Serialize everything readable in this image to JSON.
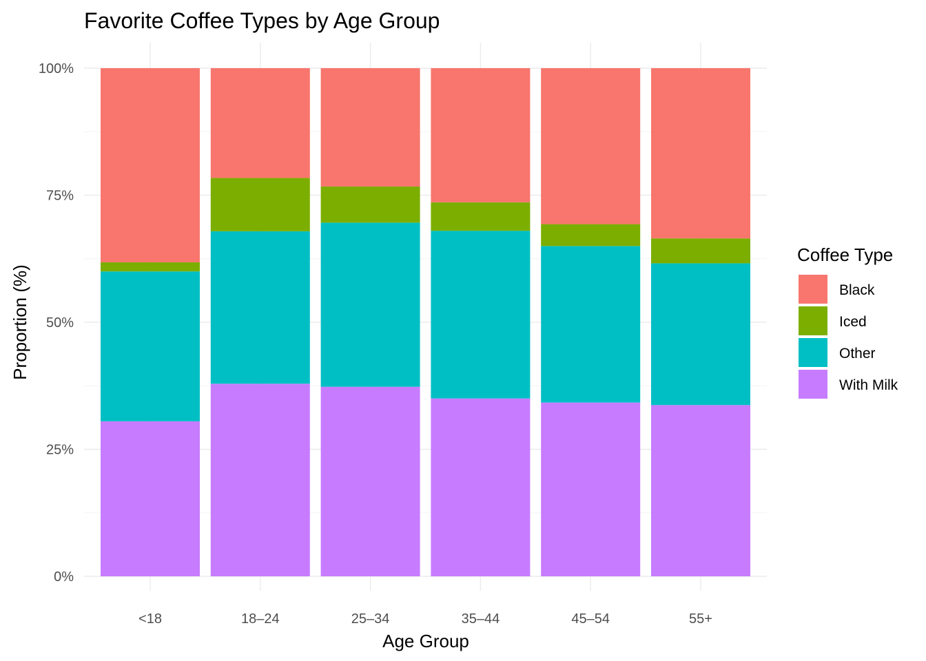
{
  "chart_data": {
    "type": "bar",
    "stacked": true,
    "title": "Favorite Coffee Types by Age Group",
    "xlabel": "Age Group",
    "ylabel": "Proportion (%)",
    "ylim": [
      0,
      100
    ],
    "y_ticks": [
      0,
      25,
      50,
      75,
      100
    ],
    "y_tick_labels": [
      "0%",
      "25%",
      "50%",
      "75%",
      "100%"
    ],
    "categories": [
      "<18",
      "18–24",
      "25–34",
      "35–44",
      "45–54",
      "55+"
    ],
    "series": [
      {
        "name": "With Milk",
        "color": "#C77CFF",
        "values": [
          30.5,
          37.9,
          37.3,
          35.0,
          34.2,
          33.7
        ]
      },
      {
        "name": "Other",
        "color": "#00BFC4",
        "values": [
          29.5,
          30.0,
          32.3,
          33.0,
          30.8,
          27.9
        ]
      },
      {
        "name": "Iced",
        "color": "#7CAE00",
        "values": [
          1.8,
          10.5,
          7.1,
          5.6,
          4.3,
          4.9
        ]
      },
      {
        "name": "Black",
        "color": "#F8766D",
        "values": [
          38.2,
          21.6,
          23.3,
          26.4,
          30.7,
          33.5
        ]
      }
    ],
    "legend": {
      "title": "Coffee Type",
      "position": "right",
      "items": [
        {
          "label": "Black",
          "color": "#F8766D"
        },
        {
          "label": "Iced",
          "color": "#7CAE00"
        },
        {
          "label": "Other",
          "color": "#00BFC4"
        },
        {
          "label": "With Milk",
          "color": "#C77CFF"
        }
      ]
    },
    "grid": true
  }
}
